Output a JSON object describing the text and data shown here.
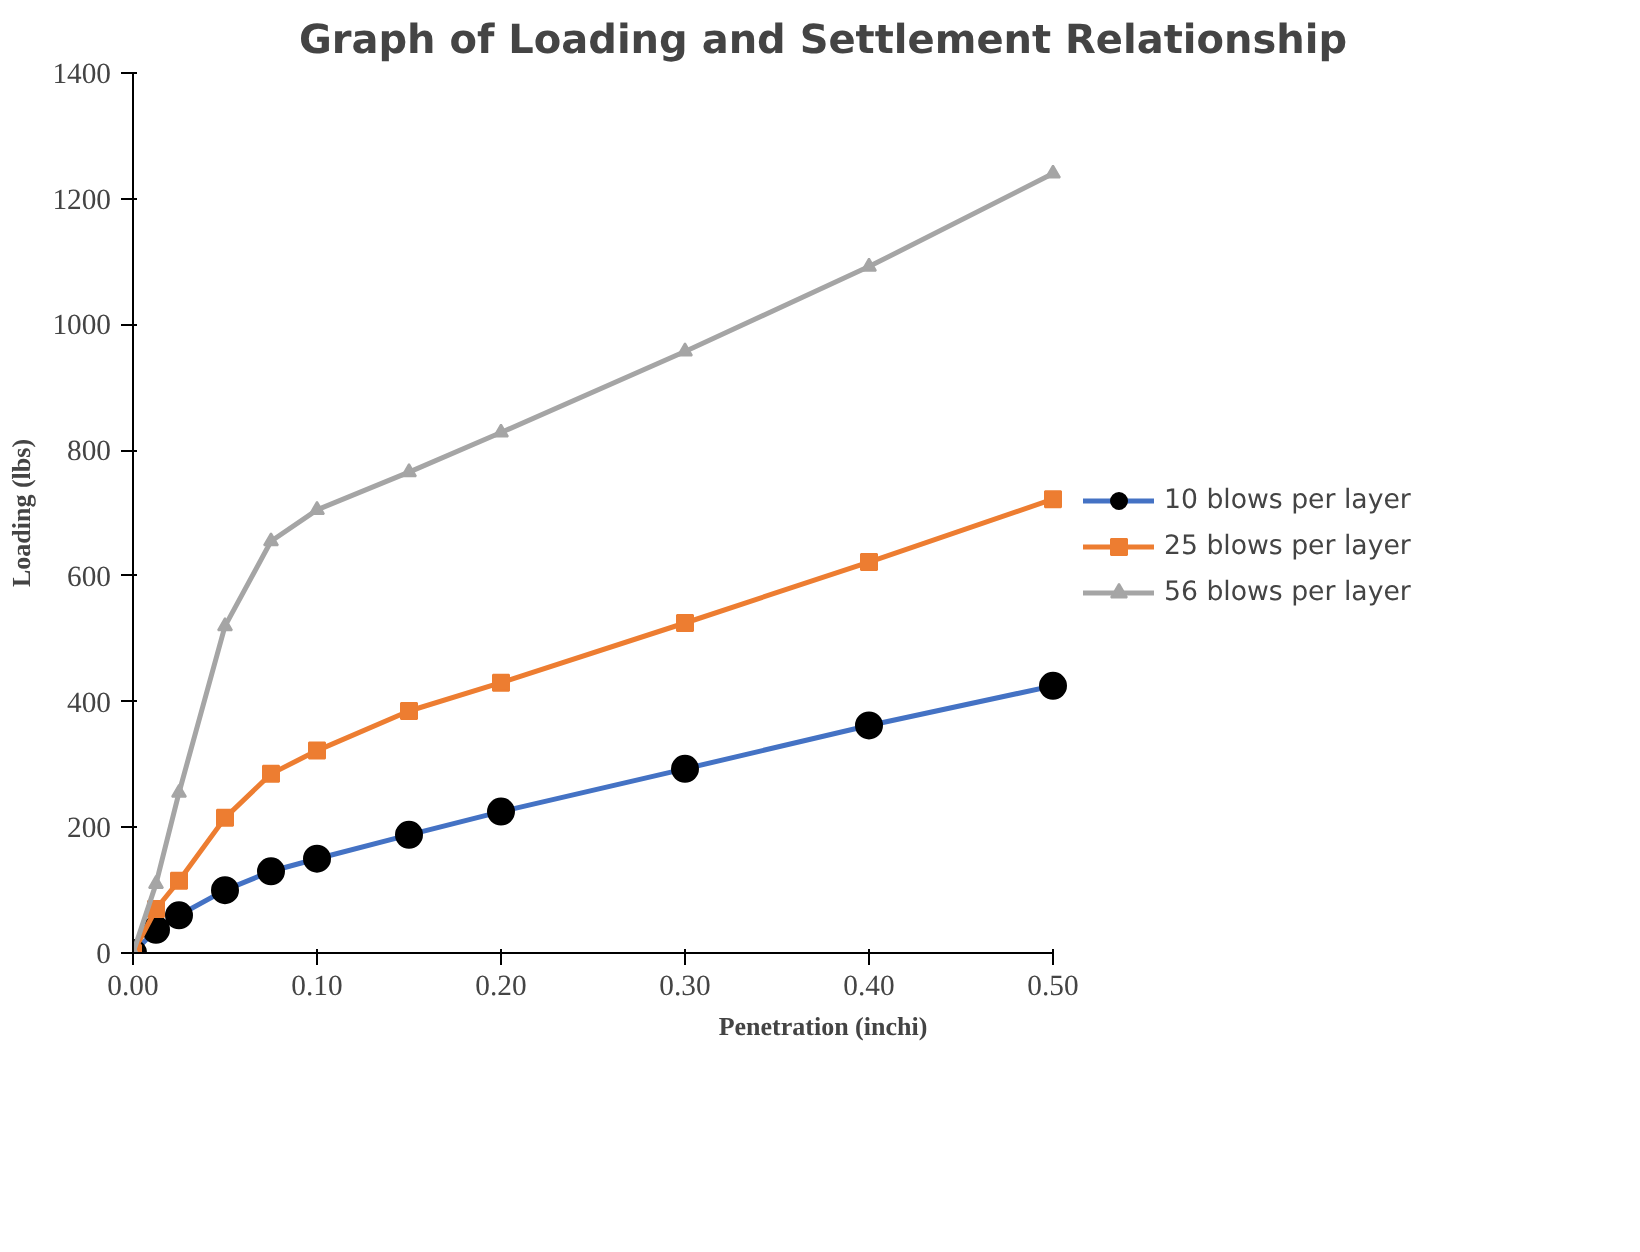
{
  "chart_data": {
    "type": "line",
    "title": "Graph of Loading and Settlement Relationship",
    "xlabel": "Penetration (inchi)",
    "ylabel": "Loading (lbs)",
    "x": [
      0,
      0.0125,
      0.025,
      0.05,
      0.075,
      0.1,
      0.15,
      0.2,
      0.3,
      0.4,
      0.5
    ],
    "series": [
      {
        "name": "10 blows per layer",
        "color": "#4472c4",
        "marker": "circle",
        "values": [
          0,
          37,
          60,
          100,
          130,
          150,
          188,
          225,
          293,
          362,
          425
        ]
      },
      {
        "name": "25 blows per layer",
        "color": "#ed7d31",
        "marker": "square",
        "values": [
          0,
          70,
          115,
          215,
          285,
          322,
          385,
          430,
          525,
          622,
          722
        ]
      },
      {
        "name": "56 blows per layer",
        "color": "#a5a5a5",
        "marker": "triangle",
        "values": [
          0,
          110,
          255,
          520,
          655,
          705,
          765,
          828,
          957,
          1092,
          1240
        ]
      }
    ],
    "xlim": [
      0,
      0.5
    ],
    "ylim": [
      0,
      1400
    ],
    "xticks": [
      {
        "value": 0,
        "label": "0.00"
      },
      {
        "value": 0.1,
        "label": "0.10"
      },
      {
        "value": 0.2,
        "label": "0.20"
      },
      {
        "value": 0.3,
        "label": "0.30"
      },
      {
        "value": 0.4,
        "label": "0.40"
      },
      {
        "value": 0.5,
        "label": "0.50"
      }
    ],
    "yticks": [
      0,
      200,
      400,
      600,
      800,
      1000,
      1200,
      1400
    ],
    "grid": false,
    "legend": "right",
    "line_style": "solid"
  }
}
